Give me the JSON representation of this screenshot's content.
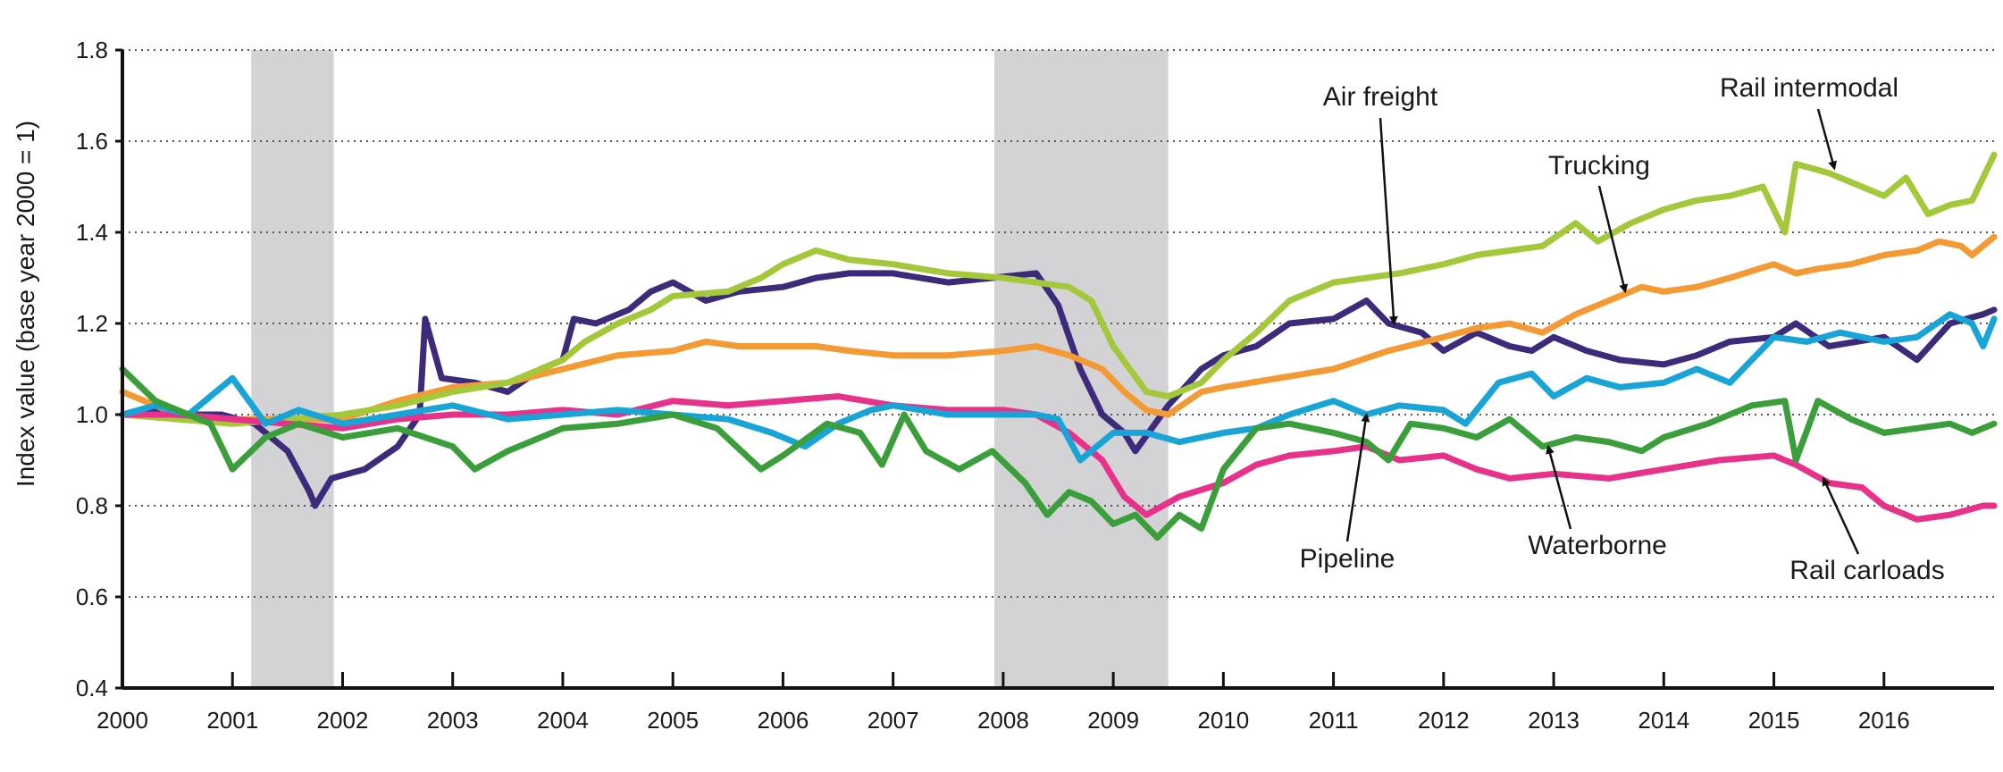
{
  "chart_data": {
    "type": "line",
    "ylabel": "Index value (base year 2000 = 1)",
    "xlim": [
      2000,
      2017
    ],
    "ylim": [
      0.4,
      1.8
    ],
    "grid": "horizontal-dotted",
    "x_ticks": [
      2000,
      2001,
      2002,
      2003,
      2004,
      2005,
      2006,
      2007,
      2008,
      2009,
      2010,
      2011,
      2012,
      2013,
      2014,
      2015,
      2016
    ],
    "x_tick_labels": [
      "2000",
      "2001",
      "2002",
      "2003",
      "2004",
      "2005",
      "2006",
      "2007",
      "2008",
      "2009",
      "2010",
      "2011",
      "2012",
      "2013",
      "2014",
      "2015",
      "2016"
    ],
    "y_ticks": [
      0.4,
      0.6,
      0.8,
      1.0,
      1.2,
      1.4,
      1.6,
      1.8
    ],
    "y_tick_labels": [
      "0.4",
      "0.6",
      "0.8",
      "1.0",
      "1.2",
      "1.4",
      "1.6",
      "1.8"
    ],
    "recession_bands": [
      [
        2001.17,
        2001.92
      ],
      [
        2007.92,
        2009.5
      ]
    ],
    "series": [
      {
        "name": "Air freight",
        "color": "#3d2a7a",
        "x": [
          2000,
          2000.3,
          2000.6,
          2000.9,
          2001.2,
          2001.5,
          2001.7,
          2001.75,
          2001.9,
          2002.2,
          2002.5,
          2002.7,
          2002.75,
          2002.9,
          2003.2,
          2003.5,
          2003.8,
          2004.0,
          2004.1,
          2004.3,
          2004.6,
          2004.8,
          2005.0,
          2005.3,
          2005.6,
          2006.0,
          2006.3,
          2006.6,
          2007.0,
          2007.5,
          2007.9,
          2008.3,
          2008.5,
          2008.7,
          2008.9,
          2009.1,
          2009.2,
          2009.5,
          2009.8,
          2010.0,
          2010.3,
          2010.6,
          2011.0,
          2011.3,
          2011.5,
          2011.8,
          2012.0,
          2012.3,
          2012.6,
          2012.8,
          2013.0,
          2013.3,
          2013.6,
          2014.0,
          2014.3,
          2014.6,
          2015.0,
          2015.2,
          2015.5,
          2016.0,
          2016.3,
          2016.6,
          2016.9,
          2017.0
        ],
        "y": [
          1.0,
          1.01,
          1.0,
          1.0,
          0.98,
          0.92,
          0.83,
          0.8,
          0.86,
          0.88,
          0.93,
          1.0,
          1.21,
          1.08,
          1.07,
          1.05,
          1.1,
          1.12,
          1.21,
          1.2,
          1.23,
          1.27,
          1.29,
          1.25,
          1.27,
          1.28,
          1.3,
          1.31,
          1.31,
          1.29,
          1.3,
          1.31,
          1.24,
          1.1,
          1.0,
          0.96,
          0.92,
          1.02,
          1.1,
          1.13,
          1.15,
          1.2,
          1.21,
          1.25,
          1.2,
          1.18,
          1.14,
          1.18,
          1.15,
          1.14,
          1.17,
          1.14,
          1.12,
          1.11,
          1.13,
          1.16,
          1.17,
          1.2,
          1.15,
          1.17,
          1.12,
          1.2,
          1.22,
          1.23
        ]
      },
      {
        "name": "Trucking",
        "color": "#f49a34",
        "x": [
          2000,
          2000.5,
          2001.0,
          2001.5,
          2002.0,
          2002.5,
          2003.0,
          2003.5,
          2004.0,
          2004.5,
          2005.0,
          2005.3,
          2005.6,
          2006.0,
          2006.3,
          2006.6,
          2007.0,
          2007.5,
          2008.0,
          2008.3,
          2008.6,
          2008.9,
          2009.1,
          2009.3,
          2009.5,
          2009.8,
          2010.0,
          2010.5,
          2011.0,
          2011.5,
          2012.0,
          2012.3,
          2012.6,
          2012.9,
          2013.2,
          2013.6,
          2013.8,
          2014.0,
          2014.3,
          2014.6,
          2015.0,
          2015.2,
          2015.4,
          2015.7,
          2016.0,
          2016.3,
          2016.5,
          2016.7,
          2016.8,
          2017.0
        ],
        "y": [
          1.05,
          1.0,
          0.99,
          0.99,
          0.99,
          1.03,
          1.06,
          1.07,
          1.1,
          1.13,
          1.14,
          1.16,
          1.15,
          1.15,
          1.15,
          1.14,
          1.13,
          1.13,
          1.14,
          1.15,
          1.13,
          1.1,
          1.05,
          1.01,
          1.0,
          1.05,
          1.06,
          1.08,
          1.1,
          1.14,
          1.17,
          1.19,
          1.2,
          1.18,
          1.22,
          1.26,
          1.28,
          1.27,
          1.28,
          1.3,
          1.33,
          1.31,
          1.32,
          1.33,
          1.35,
          1.36,
          1.38,
          1.37,
          1.35,
          1.39
        ]
      },
      {
        "name": "Rail intermodal",
        "color": "#a3c93a",
        "x": [
          2000,
          2000.5,
          2001.0,
          2001.5,
          2002.0,
          2002.5,
          2003.0,
          2003.5,
          2004.0,
          2004.2,
          2004.5,
          2004.8,
          2005.0,
          2005.5,
          2005.8,
          2006.0,
          2006.3,
          2006.6,
          2007.0,
          2007.5,
          2008.0,
          2008.3,
          2008.6,
          2008.8,
          2009.0,
          2009.3,
          2009.5,
          2009.8,
          2010.0,
          2010.3,
          2010.6,
          2011.0,
          2011.3,
          2011.6,
          2012.0,
          2012.3,
          2012.6,
          2012.9,
          2013.2,
          2013.4,
          2013.7,
          2014.0,
          2014.3,
          2014.6,
          2014.9,
          2015.1,
          2015.2,
          2015.5,
          2015.8,
          2016.0,
          2016.2,
          2016.4,
          2016.6,
          2016.8,
          2017.0
        ],
        "y": [
          1.0,
          0.99,
          0.98,
          0.99,
          1.0,
          1.02,
          1.05,
          1.07,
          1.12,
          1.16,
          1.2,
          1.23,
          1.26,
          1.27,
          1.3,
          1.33,
          1.36,
          1.34,
          1.33,
          1.31,
          1.3,
          1.29,
          1.28,
          1.25,
          1.15,
          1.05,
          1.04,
          1.07,
          1.12,
          1.18,
          1.25,
          1.29,
          1.3,
          1.31,
          1.33,
          1.35,
          1.36,
          1.37,
          1.42,
          1.38,
          1.42,
          1.45,
          1.47,
          1.48,
          1.5,
          1.4,
          1.55,
          1.53,
          1.5,
          1.48,
          1.52,
          1.44,
          1.46,
          1.47,
          1.57
        ]
      },
      {
        "name": "Rail carloads",
        "color": "#e8318a",
        "x": [
          2000,
          2000.5,
          2001.0,
          2001.5,
          2002.0,
          2002.5,
          2003.0,
          2003.5,
          2004.0,
          2004.5,
          2005.0,
          2005.5,
          2006.0,
          2006.5,
          2007.0,
          2007.5,
          2008.0,
          2008.3,
          2008.6,
          2008.9,
          2009.1,
          2009.3,
          2009.6,
          2010.0,
          2010.3,
          2010.6,
          2011.0,
          2011.3,
          2011.6,
          2012.0,
          2012.3,
          2012.6,
          2013.0,
          2013.5,
          2014.0,
          2014.5,
          2015.0,
          2015.2,
          2015.5,
          2015.8,
          2016.0,
          2016.3,
          2016.6,
          2016.9,
          2017.0
        ],
        "y": [
          1.0,
          1.0,
          0.99,
          0.98,
          0.97,
          0.99,
          1.0,
          1.0,
          1.01,
          1.0,
          1.03,
          1.02,
          1.03,
          1.04,
          1.02,
          1.01,
          1.01,
          1.0,
          0.96,
          0.9,
          0.82,
          0.78,
          0.82,
          0.85,
          0.89,
          0.91,
          0.92,
          0.93,
          0.9,
          0.91,
          0.88,
          0.86,
          0.87,
          0.86,
          0.88,
          0.9,
          0.91,
          0.89,
          0.85,
          0.84,
          0.8,
          0.77,
          0.78,
          0.8,
          0.8
        ]
      },
      {
        "name": "Pipeline",
        "color": "#19a4d8",
        "x": [
          2000,
          2000.3,
          2000.6,
          2001.0,
          2001.3,
          2001.6,
          2002.0,
          2002.5,
          2003.0,
          2003.5,
          2004.0,
          2004.5,
          2005.0,
          2005.5,
          2005.9,
          2006.2,
          2006.5,
          2006.8,
          2007.0,
          2007.5,
          2008.0,
          2008.3,
          2008.5,
          2008.7,
          2009.0,
          2009.3,
          2009.6,
          2010.0,
          2010.3,
          2010.6,
          2011.0,
          2011.3,
          2011.6,
          2012.0,
          2012.2,
          2012.5,
          2012.8,
          2013.0,
          2013.3,
          2013.6,
          2014.0,
          2014.3,
          2014.6,
          2015.0,
          2015.3,
          2015.6,
          2016.0,
          2016.3,
          2016.6,
          2016.8,
          2016.9,
          2017.0
        ],
        "y": [
          1.0,
          1.02,
          1.0,
          1.08,
          0.98,
          1.01,
          0.98,
          1.0,
          1.02,
          0.99,
          1.0,
          1.01,
          1.0,
          0.99,
          0.96,
          0.93,
          0.98,
          1.01,
          1.02,
          1.0,
          1.0,
          1.0,
          0.99,
          0.9,
          0.96,
          0.96,
          0.94,
          0.96,
          0.97,
          1.0,
          1.03,
          1.0,
          1.02,
          1.01,
          0.98,
          1.07,
          1.09,
          1.04,
          1.08,
          1.06,
          1.07,
          1.1,
          1.07,
          1.17,
          1.16,
          1.18,
          1.16,
          1.17,
          1.22,
          1.2,
          1.15,
          1.21
        ]
      },
      {
        "name": "Waterborne",
        "color": "#3a9e3a",
        "x": [
          2000,
          2000.3,
          2000.6,
          2000.8,
          2001.0,
          2001.3,
          2001.6,
          2002.0,
          2002.5,
          2003.0,
          2003.2,
          2003.5,
          2004.0,
          2004.5,
          2005.0,
          2005.4,
          2005.8,
          2006.0,
          2006.4,
          2006.7,
          2006.9,
          2007.1,
          2007.3,
          2007.6,
          2007.9,
          2008.2,
          2008.4,
          2008.6,
          2008.8,
          2009.0,
          2009.2,
          2009.4,
          2009.6,
          2009.8,
          2010.0,
          2010.3,
          2010.6,
          2011.0,
          2011.3,
          2011.5,
          2011.7,
          2012.0,
          2012.3,
          2012.6,
          2012.9,
          2013.2,
          2013.5,
          2013.8,
          2014.0,
          2014.4,
          2014.8,
          2015.1,
          2015.2,
          2015.4,
          2015.7,
          2016.0,
          2016.3,
          2016.6,
          2016.8,
          2017.0
        ],
        "y": [
          1.1,
          1.03,
          1.0,
          0.98,
          0.88,
          0.95,
          0.98,
          0.95,
          0.97,
          0.93,
          0.88,
          0.92,
          0.97,
          0.98,
          1.0,
          0.97,
          0.88,
          0.91,
          0.98,
          0.96,
          0.89,
          1.0,
          0.92,
          0.88,
          0.92,
          0.85,
          0.78,
          0.83,
          0.81,
          0.76,
          0.78,
          0.73,
          0.78,
          0.75,
          0.88,
          0.97,
          0.98,
          0.96,
          0.94,
          0.9,
          0.98,
          0.97,
          0.95,
          0.99,
          0.93,
          0.95,
          0.94,
          0.92,
          0.95,
          0.98,
          1.02,
          1.03,
          0.9,
          1.03,
          0.99,
          0.96,
          0.97,
          0.98,
          0.96,
          0.98
        ]
      }
    ],
    "annotations": [
      {
        "text": "Air freight",
        "series": "Air freight",
        "point": [
          2011.55,
          1.2
        ]
      },
      {
        "text": "Rail intermodal",
        "series": "Rail intermodal",
        "point": [
          2015.55,
          1.54
        ]
      },
      {
        "text": "Trucking",
        "series": "Trucking",
        "point": [
          2013.65,
          1.27
        ]
      },
      {
        "text": "Pipeline",
        "series": "Pipeline",
        "point": [
          2011.3,
          1.0
        ]
      },
      {
        "text": "Waterborne",
        "series": "Waterborne",
        "point": [
          2012.95,
          0.93
        ]
      },
      {
        "text": "Rail carloads",
        "series": "Rail carloads",
        "point": [
          2015.45,
          0.86
        ]
      }
    ]
  }
}
